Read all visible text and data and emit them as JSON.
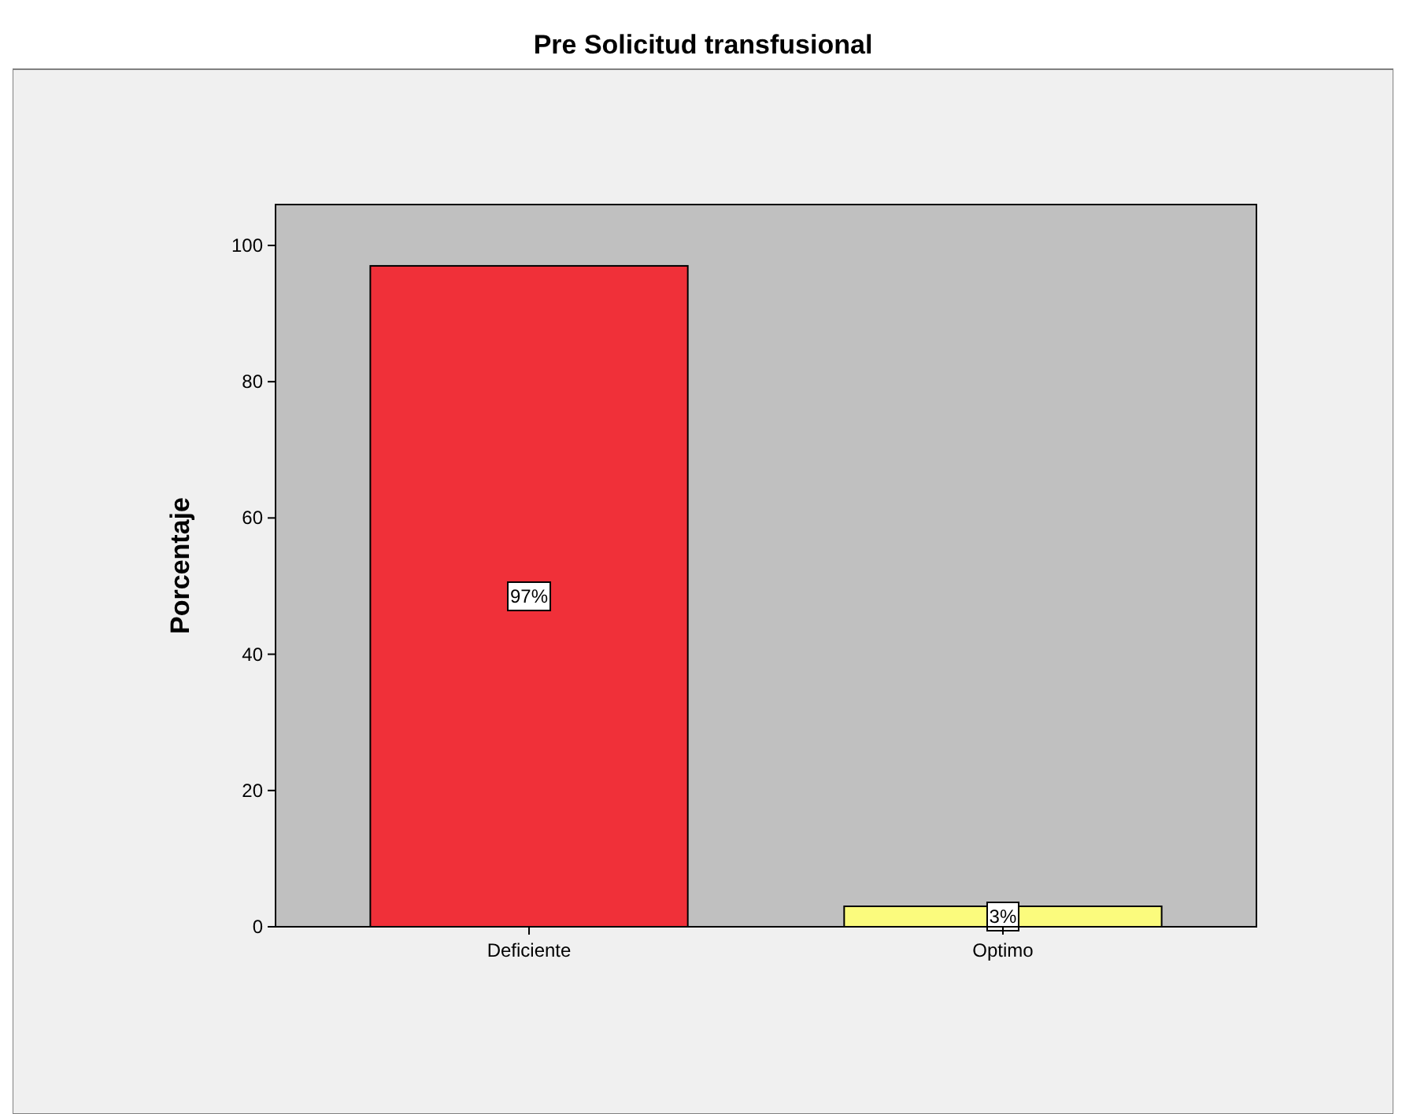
{
  "chart_data": {
    "type": "bar",
    "title": "Pre Solicitud transfusional",
    "ylabel": "Porcentaje",
    "categories": [
      "Deficiente",
      "Optimo"
    ],
    "values": [
      97,
      3
    ],
    "colors": [
      "#f03039",
      "#fbfb7d"
    ],
    "value_labels": [
      "97%",
      "3%"
    ],
    "ylim": [
      0,
      106
    ],
    "yticks": [
      0,
      20,
      40,
      60,
      80,
      100
    ],
    "grid": false
  }
}
